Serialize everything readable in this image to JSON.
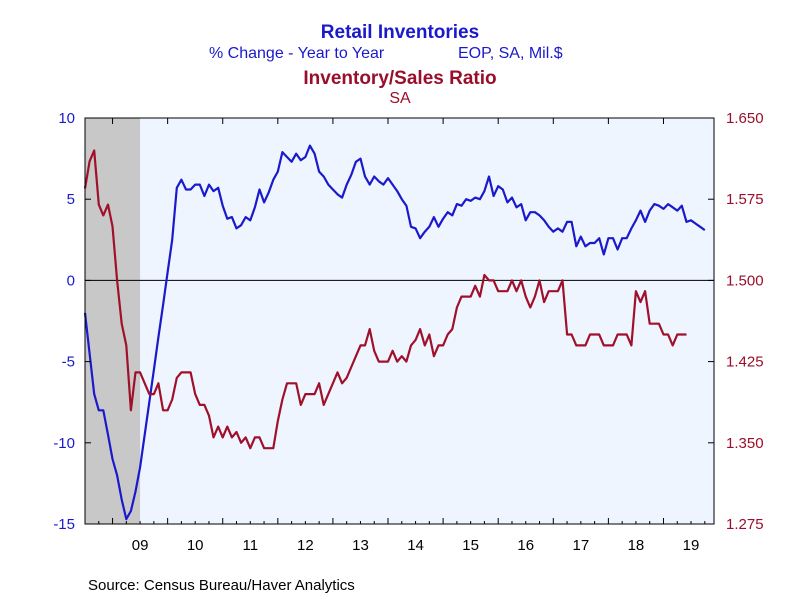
{
  "chart_data": {
    "type": "line",
    "title": "Retail Inventories",
    "subtitle_left": "% Change - Year to Year",
    "subtitle_right": "EOP, SA, Mil.$",
    "title2": "Inventory/Sales Ratio",
    "subtitle2": "SA",
    "source": "Source:  Census Bureau/Haver Analytics",
    "x_start": 2008.5,
    "x_end": 2019.917,
    "x_tick_labels": [
      "09",
      "10",
      "11",
      "12",
      "13",
      "14",
      "15",
      "16",
      "17",
      "18",
      "19"
    ],
    "recession": {
      "start": 2008.5,
      "end": 2009.5
    },
    "left_axis": {
      "ylim": [
        -15,
        10
      ],
      "ticks": [
        "10",
        "5",
        "0",
        "-5",
        "-10",
        "-15"
      ],
      "color": "#1a1acc"
    },
    "right_axis": {
      "ylim": [
        1.275,
        1.65
      ],
      "ticks": [
        "1.650",
        "1.575",
        "1.500",
        "1.425",
        "1.350",
        "1.275"
      ],
      "color": "#990f2b"
    },
    "grid": false,
    "zero_line": true,
    "colors": {
      "left_series": "#1a1acc",
      "right_series": "#a0102a",
      "recession": "#c8c8c8",
      "plot_bg": "#eef5ff",
      "axis": "#000000"
    },
    "series": [
      {
        "axis": "left",
        "values": [
          [
            2008.5,
            -2.0
          ],
          [
            2008.583,
            -4.5
          ],
          [
            2008.667,
            -7.0
          ],
          [
            2008.75,
            -8.0
          ],
          [
            2008.833,
            -8.0
          ],
          [
            2008.917,
            -9.5
          ],
          [
            2009.0,
            -11.0
          ],
          [
            2009.083,
            -12.0
          ],
          [
            2009.167,
            -13.5
          ],
          [
            2009.25,
            -14.7
          ],
          [
            2009.333,
            -14.2
          ],
          [
            2009.417,
            -13.0
          ],
          [
            2009.5,
            -11.5
          ],
          [
            2009.583,
            -9.5
          ],
          [
            2009.667,
            -7.5
          ],
          [
            2009.75,
            -5.5
          ],
          [
            2009.833,
            -3.5
          ],
          [
            2009.917,
            -1.5
          ],
          [
            2010.0,
            0.5
          ],
          [
            2010.083,
            2.5
          ],
          [
            2010.167,
            5.7
          ],
          [
            2010.25,
            6.2
          ],
          [
            2010.333,
            5.6
          ],
          [
            2010.417,
            5.6
          ],
          [
            2010.5,
            5.9
          ],
          [
            2010.583,
            5.9
          ],
          [
            2010.667,
            5.2
          ],
          [
            2010.75,
            5.9
          ],
          [
            2010.833,
            5.5
          ],
          [
            2010.917,
            5.7
          ],
          [
            2011.0,
            4.6
          ],
          [
            2011.083,
            3.8
          ],
          [
            2011.167,
            3.9
          ],
          [
            2011.25,
            3.2
          ],
          [
            2011.333,
            3.4
          ],
          [
            2011.417,
            3.9
          ],
          [
            2011.5,
            3.7
          ],
          [
            2011.583,
            4.5
          ],
          [
            2011.667,
            5.6
          ],
          [
            2011.75,
            4.8
          ],
          [
            2011.833,
            5.4
          ],
          [
            2011.917,
            6.2
          ],
          [
            2012.0,
            6.7
          ],
          [
            2012.083,
            7.9
          ],
          [
            2012.167,
            7.6
          ],
          [
            2012.25,
            7.3
          ],
          [
            2012.333,
            7.8
          ],
          [
            2012.417,
            7.4
          ],
          [
            2012.5,
            7.6
          ],
          [
            2012.583,
            8.3
          ],
          [
            2012.667,
            7.8
          ],
          [
            2012.75,
            6.7
          ],
          [
            2012.833,
            6.4
          ],
          [
            2012.917,
            5.9
          ],
          [
            2013.0,
            5.6
          ],
          [
            2013.083,
            5.3
          ],
          [
            2013.167,
            5.1
          ],
          [
            2013.25,
            5.9
          ],
          [
            2013.333,
            6.5
          ],
          [
            2013.417,
            7.3
          ],
          [
            2013.5,
            7.5
          ],
          [
            2013.583,
            6.4
          ],
          [
            2013.667,
            5.9
          ],
          [
            2013.75,
            6.4
          ],
          [
            2013.833,
            6.1
          ],
          [
            2013.917,
            5.9
          ],
          [
            2014.0,
            6.3
          ],
          [
            2014.083,
            5.9
          ],
          [
            2014.167,
            5.5
          ],
          [
            2014.25,
            5.0
          ],
          [
            2014.333,
            4.6
          ],
          [
            2014.417,
            3.3
          ],
          [
            2014.5,
            3.2
          ],
          [
            2014.583,
            2.6
          ],
          [
            2014.667,
            3.0
          ],
          [
            2014.75,
            3.3
          ],
          [
            2014.833,
            3.9
          ],
          [
            2014.917,
            3.3
          ],
          [
            2015.0,
            3.8
          ],
          [
            2015.083,
            4.2
          ],
          [
            2015.167,
            4.0
          ],
          [
            2015.25,
            4.7
          ],
          [
            2015.333,
            4.6
          ],
          [
            2015.417,
            5.0
          ],
          [
            2015.5,
            4.9
          ],
          [
            2015.583,
            5.1
          ],
          [
            2015.667,
            5.0
          ],
          [
            2015.75,
            5.5
          ],
          [
            2015.833,
            6.4
          ],
          [
            2015.917,
            5.2
          ],
          [
            2016.0,
            5.8
          ],
          [
            2016.083,
            5.6
          ],
          [
            2016.167,
            4.8
          ],
          [
            2016.25,
            5.1
          ],
          [
            2016.333,
            4.5
          ],
          [
            2016.417,
            4.7
          ],
          [
            2016.5,
            3.7
          ],
          [
            2016.583,
            4.2
          ],
          [
            2016.667,
            4.2
          ],
          [
            2016.75,
            4.0
          ],
          [
            2016.833,
            3.7
          ],
          [
            2016.917,
            3.3
          ],
          [
            2017.0,
            3.0
          ],
          [
            2017.083,
            3.2
          ],
          [
            2017.167,
            3.0
          ],
          [
            2017.25,
            3.6
          ],
          [
            2017.333,
            3.6
          ],
          [
            2017.417,
            2.1
          ],
          [
            2017.5,
            2.7
          ],
          [
            2017.583,
            2.1
          ],
          [
            2017.667,
            2.3
          ],
          [
            2017.75,
            2.3
          ],
          [
            2017.833,
            2.6
          ],
          [
            2017.917,
            1.6
          ],
          [
            2018.0,
            2.6
          ],
          [
            2018.083,
            2.6
          ],
          [
            2018.167,
            1.9
          ],
          [
            2018.25,
            2.6
          ],
          [
            2018.333,
            2.6
          ],
          [
            2018.417,
            3.2
          ],
          [
            2018.5,
            3.7
          ],
          [
            2018.583,
            4.3
          ],
          [
            2018.667,
            3.6
          ],
          [
            2018.75,
            4.3
          ],
          [
            2018.833,
            4.7
          ],
          [
            2018.917,
            4.6
          ],
          [
            2019.0,
            4.4
          ],
          [
            2019.083,
            4.7
          ],
          [
            2019.167,
            4.5
          ],
          [
            2019.25,
            4.3
          ],
          [
            2019.333,
            4.6
          ],
          [
            2019.417,
            3.6
          ],
          [
            2019.5,
            3.7
          ],
          [
            2019.583,
            3.5
          ],
          [
            2019.667,
            3.3
          ],
          [
            2019.75,
            3.1
          ]
        ]
      },
      {
        "axis": "right",
        "values": [
          [
            2008.5,
            1.585
          ],
          [
            2008.583,
            1.61
          ],
          [
            2008.667,
            1.62
          ],
          [
            2008.75,
            1.57
          ],
          [
            2008.833,
            1.56
          ],
          [
            2008.917,
            1.57
          ],
          [
            2009.0,
            1.55
          ],
          [
            2009.083,
            1.5
          ],
          [
            2009.167,
            1.46
          ],
          [
            2009.25,
            1.44
          ],
          [
            2009.333,
            1.38
          ],
          [
            2009.417,
            1.415
          ],
          [
            2009.5,
            1.415
          ],
          [
            2009.583,
            1.405
          ],
          [
            2009.667,
            1.395
          ],
          [
            2009.75,
            1.395
          ],
          [
            2009.833,
            1.405
          ],
          [
            2009.917,
            1.38
          ],
          [
            2010.0,
            1.38
          ],
          [
            2010.083,
            1.39
          ],
          [
            2010.167,
            1.41
          ],
          [
            2010.25,
            1.415
          ],
          [
            2010.333,
            1.415
          ],
          [
            2010.417,
            1.415
          ],
          [
            2010.5,
            1.395
          ],
          [
            2010.583,
            1.385
          ],
          [
            2010.667,
            1.385
          ],
          [
            2010.75,
            1.375
          ],
          [
            2010.833,
            1.355
          ],
          [
            2010.917,
            1.365
          ],
          [
            2011.0,
            1.355
          ],
          [
            2011.083,
            1.365
          ],
          [
            2011.167,
            1.355
          ],
          [
            2011.25,
            1.36
          ],
          [
            2011.333,
            1.35
          ],
          [
            2011.417,
            1.355
          ],
          [
            2011.5,
            1.345
          ],
          [
            2011.583,
            1.355
          ],
          [
            2011.667,
            1.355
          ],
          [
            2011.75,
            1.345
          ],
          [
            2011.833,
            1.345
          ],
          [
            2011.917,
            1.345
          ],
          [
            2012.0,
            1.37
          ],
          [
            2012.083,
            1.39
          ],
          [
            2012.167,
            1.405
          ],
          [
            2012.25,
            1.405
          ],
          [
            2012.333,
            1.405
          ],
          [
            2012.417,
            1.385
          ],
          [
            2012.5,
            1.395
          ],
          [
            2012.583,
            1.395
          ],
          [
            2012.667,
            1.395
          ],
          [
            2012.75,
            1.405
          ],
          [
            2012.833,
            1.385
          ],
          [
            2012.917,
            1.395
          ],
          [
            2013.0,
            1.405
          ],
          [
            2013.083,
            1.415
          ],
          [
            2013.167,
            1.405
          ],
          [
            2013.25,
            1.41
          ],
          [
            2013.333,
            1.42
          ],
          [
            2013.417,
            1.43
          ],
          [
            2013.5,
            1.44
          ],
          [
            2013.583,
            1.44
          ],
          [
            2013.667,
            1.455
          ],
          [
            2013.75,
            1.435
          ],
          [
            2013.833,
            1.425
          ],
          [
            2013.917,
            1.425
          ],
          [
            2014.0,
            1.425
          ],
          [
            2014.083,
            1.435
          ],
          [
            2014.167,
            1.425
          ],
          [
            2014.25,
            1.43
          ],
          [
            2014.333,
            1.425
          ],
          [
            2014.417,
            1.44
          ],
          [
            2014.5,
            1.445
          ],
          [
            2014.583,
            1.455
          ],
          [
            2014.667,
            1.44
          ],
          [
            2014.75,
            1.45
          ],
          [
            2014.833,
            1.43
          ],
          [
            2014.917,
            1.44
          ],
          [
            2015.0,
            1.44
          ],
          [
            2015.083,
            1.45
          ],
          [
            2015.167,
            1.455
          ],
          [
            2015.25,
            1.475
          ],
          [
            2015.333,
            1.485
          ],
          [
            2015.417,
            1.485
          ],
          [
            2015.5,
            1.485
          ],
          [
            2015.583,
            1.495
          ],
          [
            2015.667,
            1.485
          ],
          [
            2015.75,
            1.505
          ],
          [
            2015.833,
            1.5
          ],
          [
            2015.917,
            1.5
          ],
          [
            2016.0,
            1.49
          ],
          [
            2016.083,
            1.49
          ],
          [
            2016.167,
            1.49
          ],
          [
            2016.25,
            1.5
          ],
          [
            2016.333,
            1.49
          ],
          [
            2016.417,
            1.5
          ],
          [
            2016.5,
            1.485
          ],
          [
            2016.583,
            1.475
          ],
          [
            2016.667,
            1.485
          ],
          [
            2016.75,
            1.5
          ],
          [
            2016.833,
            1.48
          ],
          [
            2016.917,
            1.49
          ],
          [
            2017.0,
            1.49
          ],
          [
            2017.083,
            1.49
          ],
          [
            2017.167,
            1.5
          ],
          [
            2017.25,
            1.45
          ],
          [
            2017.333,
            1.45
          ],
          [
            2017.417,
            1.44
          ],
          [
            2017.5,
            1.44
          ],
          [
            2017.583,
            1.44
          ],
          [
            2017.667,
            1.45
          ],
          [
            2017.75,
            1.45
          ],
          [
            2017.833,
            1.45
          ],
          [
            2017.917,
            1.44
          ],
          [
            2018.0,
            1.44
          ],
          [
            2018.083,
            1.44
          ],
          [
            2018.167,
            1.45
          ],
          [
            2018.25,
            1.45
          ],
          [
            2018.333,
            1.45
          ],
          [
            2018.417,
            1.44
          ],
          [
            2018.5,
            1.49
          ],
          [
            2018.583,
            1.48
          ],
          [
            2018.667,
            1.49
          ],
          [
            2018.75,
            1.46
          ],
          [
            2018.833,
            1.46
          ],
          [
            2018.917,
            1.46
          ],
          [
            2019.0,
            1.45
          ],
          [
            2019.083,
            1.45
          ],
          [
            2019.167,
            1.44
          ],
          [
            2019.25,
            1.45
          ],
          [
            2019.333,
            1.45
          ],
          [
            2019.417,
            1.45
          ]
        ]
      }
    ]
  }
}
